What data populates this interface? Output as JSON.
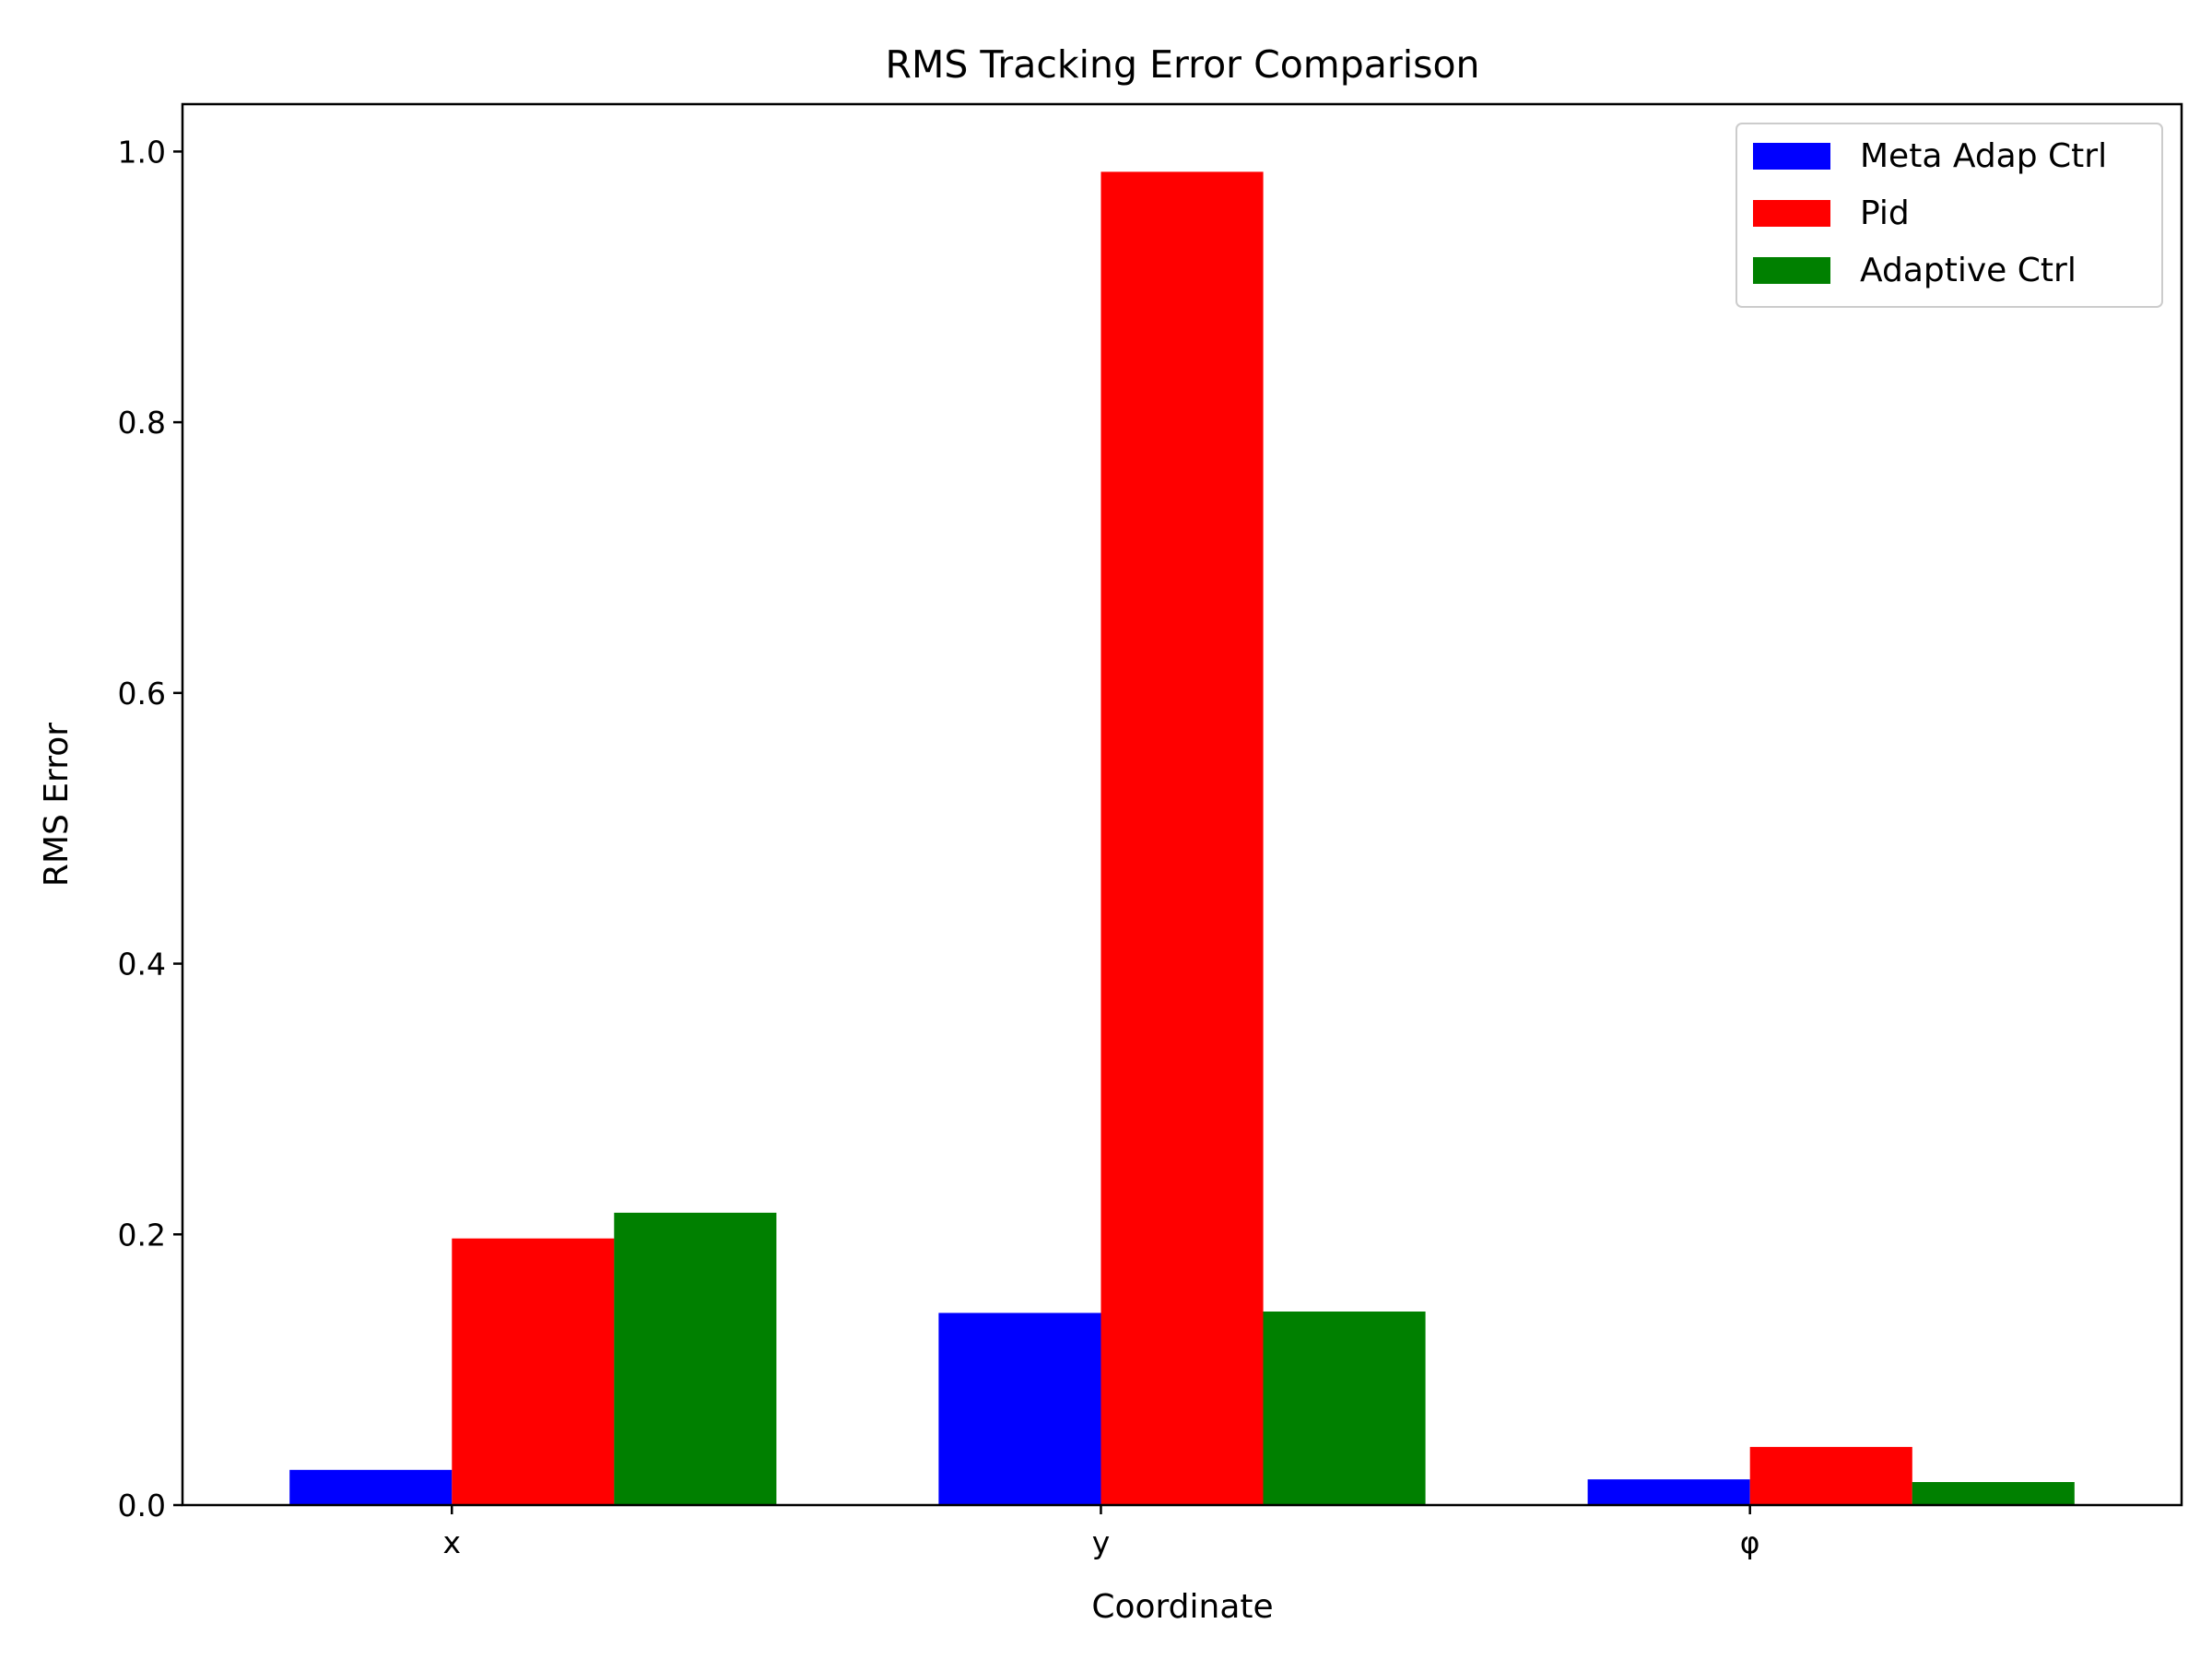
{
  "chart_data": {
    "type": "bar",
    "title": "RMS Tracking Error Comparison",
    "xlabel": "Coordinate",
    "ylabel": "RMS Error",
    "categories": [
      "x",
      "y",
      "φ"
    ],
    "ylim": [
      0,
      1.035
    ],
    "yticks": [
      0.0,
      0.2,
      0.4,
      0.6,
      0.8,
      1.0
    ],
    "ytick_labels": [
      "0.0",
      "0.2",
      "0.4",
      "0.6",
      "0.8",
      "1.0"
    ],
    "grid": false,
    "legend_position": "top-right",
    "series": [
      {
        "name": "Meta Adap Ctrl",
        "color": "#0000ff",
        "values": [
          0.026,
          0.142,
          0.019
        ]
      },
      {
        "name": "Pid",
        "color": "#ff0000",
        "values": [
          0.197,
          0.985,
          0.043
        ]
      },
      {
        "name": "Adaptive Ctrl",
        "color": "#008000",
        "values": [
          0.216,
          0.143,
          0.017
        ]
      }
    ]
  }
}
